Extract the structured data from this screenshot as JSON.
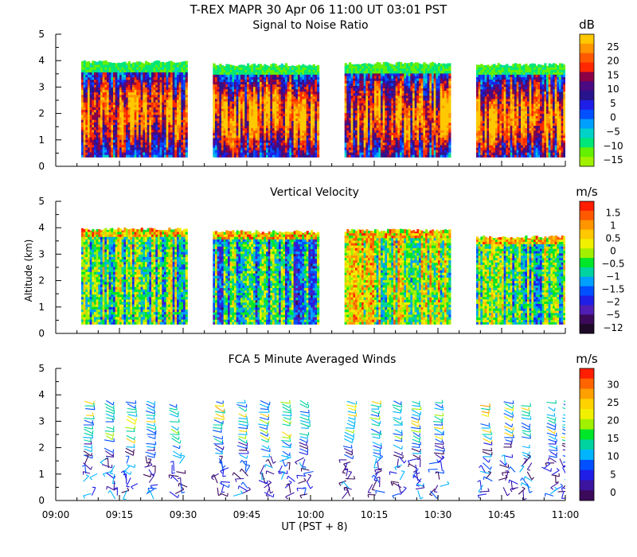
{
  "figure": {
    "title": "T-REX  MAPR 30 Apr 06  11:00 UT  03:01  PST",
    "x_label": "UT  (PST + 8)",
    "y_label": "Altitude (km)"
  },
  "chart_data": [
    {
      "type": "heatmap",
      "title": "Signal to Noise Ratio",
      "units": "dB",
      "xlim_minutes": [
        0,
        120
      ],
      "ylim": [
        0,
        5
      ],
      "y_ticks": [
        0,
        1,
        2,
        3,
        4,
        5
      ],
      "x_ticks": [
        {
          "m": 0,
          "label": "09:00"
        },
        {
          "m": 15,
          "label": "09:15"
        },
        {
          "m": 30,
          "label": "09:30"
        },
        {
          "m": 45,
          "label": "09:45"
        },
        {
          "m": 60,
          "label": "10:00"
        },
        {
          "m": 75,
          "label": "10:15"
        },
        {
          "m": 90,
          "label": "10:30"
        },
        {
          "m": 105,
          "label": "10:45"
        },
        {
          "m": 120,
          "label": "11:00"
        }
      ],
      "segments": [
        {
          "start": 6,
          "end": 31,
          "alt_bottom": 0.35,
          "alt_top": 3.95
        },
        {
          "start": 37,
          "end": 62,
          "alt_bottom": 0.35,
          "alt_top": 3.85
        },
        {
          "start": 68,
          "end": 93,
          "alt_bottom": 0.35,
          "alt_top": 3.9
        },
        {
          "start": 99,
          "end": 124,
          "alt_bottom": 0.35,
          "alt_top": 3.85
        }
      ],
      "colorbar": {
        "labels": [
          "25",
          "20",
          "15",
          "10",
          "5",
          "0",
          "−5",
          "−10",
          "−15"
        ],
        "colors": [
          "#ffc800",
          "#ff9600",
          "#ff5a00",
          "#ff2800",
          "#8c0046",
          "#4b0a82",
          "#28148c",
          "#1e1ee6",
          "#0050ff",
          "#00a0ff",
          "#00d2c8",
          "#00e678",
          "#64f000",
          "#a0f000"
        ]
      }
    },
    {
      "type": "heatmap",
      "title": "Vertical Velocity",
      "units": "m/s",
      "xlim_minutes": [
        0,
        120
      ],
      "ylim": [
        0,
        5
      ],
      "y_ticks": [
        0,
        1,
        2,
        3,
        4,
        5
      ],
      "x_ticks": [
        {
          "m": 0,
          "label": "09:00"
        },
        {
          "m": 15,
          "label": "09:15"
        },
        {
          "m": 30,
          "label": "09:30"
        },
        {
          "m": 45,
          "label": "09:45"
        },
        {
          "m": 60,
          "label": "10:00"
        },
        {
          "m": 75,
          "label": "10:15"
        },
        {
          "m": 90,
          "label": "10:30"
        },
        {
          "m": 105,
          "label": "10:45"
        },
        {
          "m": 120,
          "label": "11:00"
        }
      ],
      "segments": [
        {
          "start": 6,
          "end": 31,
          "alt_bottom": 0.35,
          "alt_top": 3.95
        },
        {
          "start": 37,
          "end": 62,
          "alt_bottom": 0.35,
          "alt_top": 3.85
        },
        {
          "start": 68,
          "end": 93,
          "alt_bottom": 0.35,
          "alt_top": 3.9
        },
        {
          "start": 99,
          "end": 124,
          "alt_bottom": 0.35,
          "alt_top": 3.65
        }
      ],
      "colorbar": {
        "labels": [
          "1.5",
          "1",
          "0.5",
          "0",
          "−0.5",
          "−1",
          "−1.5",
          "−2",
          "−5",
          "−12"
        ],
        "colors": [
          "#ff1e00",
          "#ff5a00",
          "#ff9600",
          "#ffc800",
          "#f0f000",
          "#a0f000",
          "#00e628",
          "#00d2a0",
          "#00a0ff",
          "#0050ff",
          "#1e1ee6",
          "#501eb4",
          "#3c0a5a",
          "#1e0a28"
        ]
      }
    },
    {
      "type": "scatter",
      "title": "FCA 5 Minute Averaged Winds",
      "units": "m/s",
      "xlim_minutes": [
        0,
        120
      ],
      "ylim": [
        0,
        5
      ],
      "y_ticks": [
        0,
        1,
        2,
        3,
        4,
        5
      ],
      "x_ticks": [
        {
          "m": 0,
          "label": "09:00"
        },
        {
          "m": 15,
          "label": "09:15"
        },
        {
          "m": 30,
          "label": "09:30"
        },
        {
          "m": 45,
          "label": "09:45"
        },
        {
          "m": 60,
          "label": "10:00"
        },
        {
          "m": 75,
          "label": "10:15"
        },
        {
          "m": 90,
          "label": "10:30"
        },
        {
          "m": 105,
          "label": "10:45"
        },
        {
          "m": 120,
          "label": "11:00"
        }
      ],
      "profile_times_minutes": [
        8,
        13,
        18,
        23,
        28,
        39,
        44,
        49,
        54,
        59,
        70,
        75,
        80,
        85,
        90,
        101,
        106,
        111,
        116,
        121
      ],
      "alt_range": [
        0.2,
        3.7
      ],
      "colorbar": {
        "labels": [
          "30",
          "25",
          "20",
          "15",
          "10",
          "5",
          "0"
        ],
        "colors": [
          "#ff1e00",
          "#ff6400",
          "#ffa000",
          "#ffd200",
          "#f0f000",
          "#a0f000",
          "#00e628",
          "#00d2a0",
          "#00b4ff",
          "#0050ff",
          "#1e1ee6",
          "#3c14a0",
          "#3c0a5a"
        ]
      }
    }
  ]
}
